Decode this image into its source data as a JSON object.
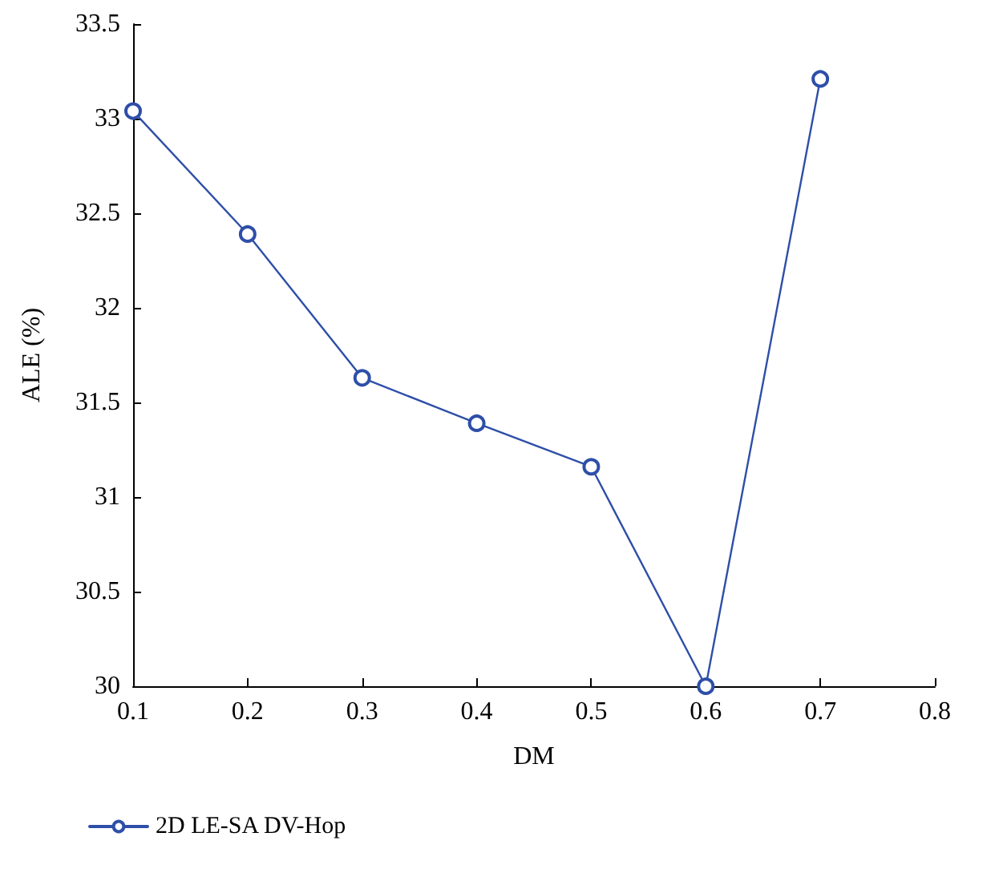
{
  "chart_data": {
    "type": "line",
    "xlabel": "DM",
    "ylabel": "ALE (%)",
    "x": [
      0.1,
      0.2,
      0.3,
      0.4,
      0.5,
      0.6,
      0.7
    ],
    "series": [
      {
        "name": "2D LE-SA DV-Hop",
        "color": "#2e4fa8",
        "values": [
          33.04,
          32.39,
          31.63,
          31.39,
          31.16,
          30.0,
          33.21
        ]
      }
    ],
    "xlim": [
      0.1,
      0.8
    ],
    "xticks": [
      0.1,
      0.2,
      0.3,
      0.4,
      0.5,
      0.6,
      0.7,
      0.8
    ],
    "ylim": [
      30,
      33.5
    ],
    "yticks": [
      30,
      30.5,
      31,
      31.5,
      32,
      32.5,
      33,
      33.5
    ],
    "grid": false,
    "legend": "bottom left",
    "marker": "circle",
    "line_style": "solid"
  }
}
